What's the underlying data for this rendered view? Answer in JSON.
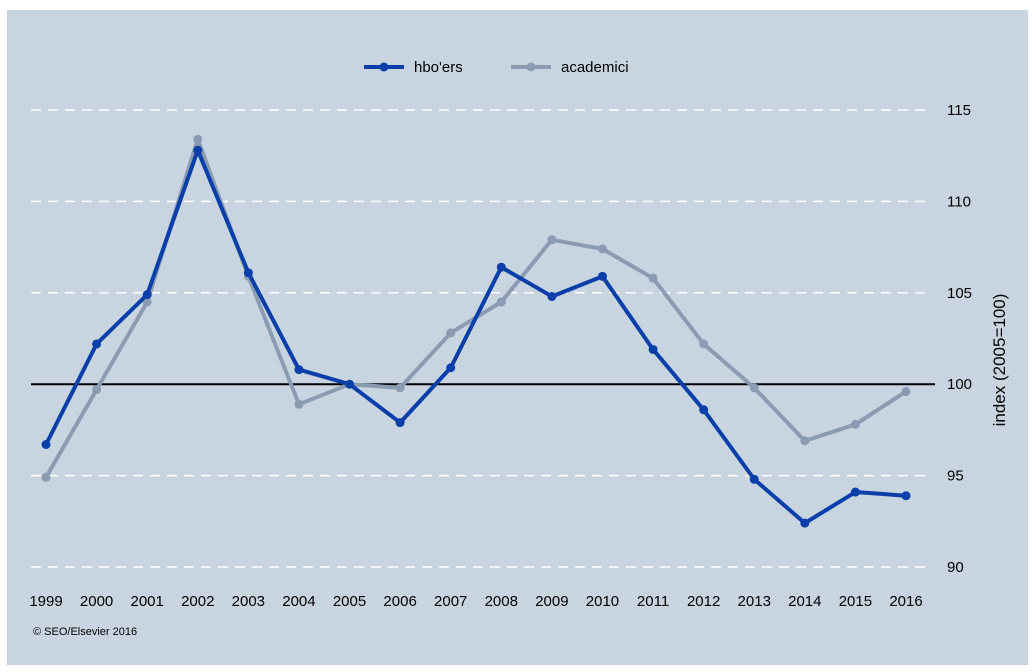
{
  "chart_data": {
    "type": "line",
    "title": "",
    "xlabel": "",
    "ylabel": "index (2005=100)",
    "x": [
      "1999",
      "2000",
      "2001",
      "2002",
      "2003",
      "2004",
      "2005",
      "2006",
      "2007",
      "2008",
      "2009",
      "2010",
      "2011",
      "2012",
      "2013",
      "2014",
      "2015",
      "2016"
    ],
    "series": [
      {
        "name": "hbo'ers",
        "color": "#0a3faa",
        "values": [
          96.7,
          102.2,
          104.9,
          112.8,
          106.1,
          100.8,
          100.0,
          97.9,
          100.9,
          106.4,
          104.8,
          105.9,
          101.9,
          98.6,
          94.8,
          92.4,
          94.1,
          93.9
        ]
      },
      {
        "name": "academici",
        "color": "#8a9bb2",
        "values": [
          94.9,
          99.7,
          104.5,
          113.4,
          105.9,
          98.9,
          100.0,
          99.8,
          102.8,
          104.5,
          107.9,
          107.4,
          105.8,
          102.2,
          99.8,
          96.9,
          97.8,
          99.6
        ]
      }
    ],
    "ylim": [
      90,
      115
    ],
    "yticks": [
      "90",
      "95",
      "100",
      "105",
      "110",
      "115"
    ],
    "y_axis_position": "right",
    "reference_line": 100,
    "grid": "horizontal-dashed",
    "legend_position": "top-center",
    "background_color": "#c8d4e0",
    "copyright": "© SEO/Elsevier 2016"
  }
}
